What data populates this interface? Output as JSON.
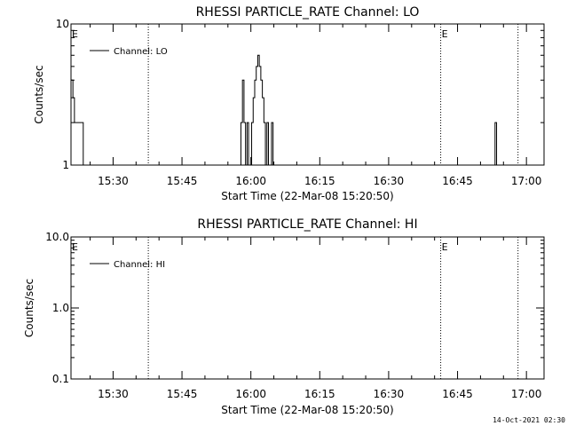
{
  "chart_data": [
    {
      "type": "line",
      "title": "RHESSI PARTICLE_RATE Channel: LO",
      "xlabel": "Start Time (22-Mar-08 15:20:50)",
      "ylabel": "Counts/sec",
      "x_range": [
        "15:20:50",
        "17:03:50"
      ],
      "ylim": [
        1,
        10
      ],
      "yscale": "log",
      "x_ticks": [
        "15:30",
        "15:45",
        "16:00",
        "16:15",
        "16:30",
        "16:45",
        "17:00"
      ],
      "y_ticks": [
        "1",
        "10"
      ],
      "legend": "top-left",
      "series": [
        {
          "name": "Channel: LO",
          "x": [
            "15:20:50",
            "15:21:15",
            "15:21:35",
            "15:21:55",
            "15:22:10",
            "15:22:30",
            "15:22:50",
            "15:23:30",
            "15:23:50",
            "15:57:30",
            "15:57:50",
            "15:58:10",
            "15:58:30",
            "15:58:50",
            "15:59:10",
            "15:59:30",
            "15:59:50",
            "16:00:10",
            "16:00:30",
            "16:00:50",
            "16:01:10",
            "16:01:30",
            "16:01:50",
            "16:02:10",
            "16:02:30",
            "16:02:50",
            "16:03:10",
            "16:03:30",
            "16:03:50",
            "16:04:10",
            "16:04:30",
            "16:04:50",
            "16:05:10",
            "16:05:30",
            "16:05:50",
            "16:06:10",
            "16:52:30",
            "16:52:50",
            "16:53:10",
            "16:53:30",
            "16:53:50",
            "16:54:10"
          ],
          "y": [
            4,
            3,
            2,
            2,
            2,
            2,
            2,
            1,
            1,
            1,
            2,
            4,
            2,
            1,
            2,
            1,
            1,
            2,
            3,
            4,
            5,
            6,
            5,
            4,
            3,
            2,
            1,
            2,
            1,
            1,
            2,
            1,
            1,
            1,
            1,
            1,
            1,
            1,
            2,
            1,
            1,
            1
          ]
        }
      ],
      "vertical_markers": [
        {
          "time": "15:37:40",
          "label": "",
          "style": "dotted"
        },
        {
          "time": "16:41:20",
          "label": "E",
          "style": "dotted"
        },
        {
          "time": "16:58:10",
          "label": "",
          "style": "dotted"
        }
      ],
      "start_marker_label": "E"
    },
    {
      "type": "line",
      "title": "RHESSI PARTICLE_RATE Channel: HI",
      "xlabel": "Start Time (22-Mar-08 15:20:50)",
      "ylabel": "Counts/sec",
      "x_range": [
        "15:20:50",
        "17:03:50"
      ],
      "ylim": [
        0.1,
        10
      ],
      "yscale": "log",
      "x_ticks": [
        "15:30",
        "15:45",
        "16:00",
        "16:15",
        "16:30",
        "16:45",
        "17:00"
      ],
      "y_ticks": [
        "0.1",
        "1.0",
        "10.0"
      ],
      "legend": "top-left",
      "series": [
        {
          "name": "Channel: HI",
          "x": [],
          "y": []
        }
      ],
      "vertical_markers": [
        {
          "time": "15:37:40",
          "label": "",
          "style": "dotted"
        },
        {
          "time": "16:41:20",
          "label": "E",
          "style": "dotted"
        },
        {
          "time": "16:58:10",
          "label": "",
          "style": "dotted"
        }
      ],
      "start_marker_label": "E"
    }
  ],
  "footer": {
    "timestamp": "14-Oct-2021 02:30"
  }
}
